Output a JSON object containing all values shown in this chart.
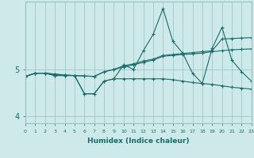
{
  "xlabel": "Humidex (Indice chaleur)",
  "bg_color": "#cde9e9",
  "grid_color": "#9abfbf",
  "line_color": "#1a6b6b",
  "xlim": [
    0,
    23
  ],
  "ylim": [
    3.85,
    6.45
  ],
  "yticks": [
    4,
    5
  ],
  "xticks": [
    0,
    1,
    2,
    3,
    4,
    5,
    6,
    7,
    8,
    9,
    10,
    11,
    12,
    13,
    14,
    15,
    16,
    17,
    18,
    19,
    20,
    21,
    22,
    23
  ],
  "series": [
    [
      4.85,
      4.92,
      4.92,
      4.9,
      4.88,
      4.87,
      4.86,
      4.85,
      4.95,
      5.0,
      5.05,
      5.1,
      5.15,
      5.2,
      5.28,
      5.3,
      5.32,
      5.33,
      5.35,
      5.38,
      5.4,
      5.42,
      5.43,
      5.44
    ],
    [
      4.85,
      4.92,
      4.92,
      4.9,
      4.88,
      4.87,
      4.86,
      4.85,
      4.95,
      5.0,
      5.08,
      5.12,
      5.18,
      5.22,
      5.3,
      5.32,
      5.34,
      5.36,
      5.38,
      5.4,
      5.65,
      5.66,
      5.67,
      5.68
    ],
    [
      4.85,
      4.92,
      4.92,
      4.87,
      4.87,
      4.87,
      4.48,
      4.48,
      4.75,
      4.8,
      5.1,
      5.0,
      5.4,
      5.75,
      6.3,
      5.6,
      5.35,
      4.92,
      4.7,
      5.45,
      5.9,
      5.2,
      4.95,
      4.75
    ],
    [
      4.85,
      4.92,
      4.92,
      4.87,
      4.87,
      4.87,
      4.48,
      4.48,
      4.75,
      4.8,
      4.8,
      4.8,
      4.8,
      4.8,
      4.8,
      4.78,
      4.75,
      4.72,
      4.7,
      4.68,
      4.65,
      4.62,
      4.6,
      4.58
    ]
  ]
}
